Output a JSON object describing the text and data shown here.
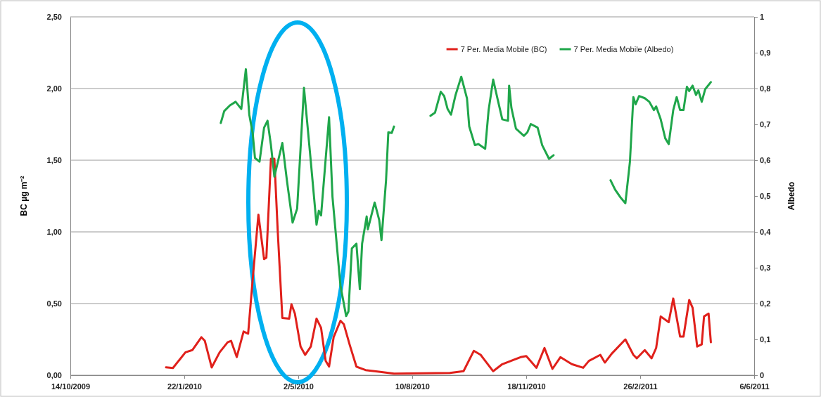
{
  "chart_data": {
    "type": "line",
    "ylabel": "BC µg m⁻²",
    "y2label": "Albedo",
    "xlim": [
      "2009-10-14",
      "2011-06-06"
    ],
    "xticks": [
      {
        "value": "2009-10-14",
        "label": "14/10/2009"
      },
      {
        "value": "2010-01-22",
        "label": "22/1/2010"
      },
      {
        "value": "2010-05-02",
        "label": "2/5/2010"
      },
      {
        "value": "2010-08-10",
        "label": "10/8/2010"
      },
      {
        "value": "2010-11-18",
        "label": "18/11/2010"
      },
      {
        "value": "2011-02-26",
        "label": "26/2/2011"
      },
      {
        "value": "2011-06-06",
        "label": "6/6/2011"
      }
    ],
    "ylim": [
      0,
      2.5
    ],
    "yticks": [
      {
        "value": 0,
        "label": "0,00"
      },
      {
        "value": 0.5,
        "label": "0,50"
      },
      {
        "value": 1,
        "label": "1,00"
      },
      {
        "value": 1.5,
        "label": "1,50"
      },
      {
        "value": 2,
        "label": "2,00"
      },
      {
        "value": 2.5,
        "label": "2,50"
      }
    ],
    "y2lim": [
      0,
      1
    ],
    "y2ticks": [
      0,
      {
        "value": 0.1,
        "label": "0,1"
      },
      {
        "value": 0.2,
        "label": "0,2"
      },
      {
        "value": 0.3,
        "label": "0,3"
      },
      {
        "value": 0.4,
        "label": "0,4"
      },
      {
        "value": 0.5,
        "label": "0,5"
      },
      {
        "value": 0.6,
        "label": "0,6"
      },
      {
        "value": 0.7,
        "label": "0,7"
      },
      {
        "value": 0.8,
        "label": "0,8"
      },
      {
        "value": 0.9,
        "label": "0,9"
      },
      1
    ],
    "grid": "y",
    "legend": "top",
    "series": [
      {
        "name": "7 Per. Media Mobile (BC)",
        "color": "#e0201b",
        "x": [
          "2010-01-06",
          "2010-01-12",
          "2010-01-23",
          "2010-01-29",
          "2010-02-06",
          "2010-02-09",
          "2010-02-15",
          "2010-02-22",
          "2010-03-01",
          "2010-03-04",
          "2010-03-09",
          "2010-03-15",
          "2010-03-19",
          "2010-03-23",
          "2010-03-28",
          "2010-04-02",
          "2010-04-04",
          "2010-04-08",
          "2010-04-11",
          "2010-04-14",
          "2010-04-18",
          "2010-04-24",
          "2010-04-26",
          "2010-04-29",
          "2010-05-04",
          "2010-05-08",
          "2010-05-13",
          "2010-05-18",
          "2010-05-22",
          "2010-05-26",
          "2010-05-29",
          "2010-06-02",
          "2010-06-08",
          "2010-06-11",
          "2010-06-16",
          "2010-06-22",
          "2010-06-30",
          "2010-07-13",
          "2010-07-25",
          "2010-09-12",
          "2010-09-24",
          "2010-10-03",
          "2010-10-09",
          "2010-10-20",
          "2010-10-28",
          "2010-11-13",
          "2010-11-18",
          "2010-11-27",
          "2010-12-04",
          "2010-12-11",
          "2010-12-18",
          "2010-12-28",
          "2011-01-07",
          "2011-01-12",
          "2011-01-22",
          "2011-01-26",
          "2011-02-01",
          "2011-02-13",
          "2011-02-20",
          "2011-02-23",
          "2011-03-02",
          "2011-03-08",
          "2011-03-12",
          "2011-03-16",
          "2011-03-23",
          "2011-03-27",
          "2011-04-02",
          "2011-04-05",
          "2011-04-10",
          "2011-04-13",
          "2011-04-17",
          "2011-04-21",
          "2011-04-23",
          "2011-04-27",
          "2011-04-29"
        ],
        "values": [
          0.055,
          0.05,
          0.16,
          0.175,
          0.265,
          0.24,
          0.054,
          0.16,
          0.23,
          0.24,
          0.127,
          0.305,
          0.29,
          0.67,
          1.12,
          0.81,
          0.82,
          1.51,
          1.51,
          1.0,
          0.4,
          0.395,
          0.495,
          0.43,
          0.2,
          0.142,
          0.2,
          0.395,
          0.33,
          0.1,
          0.06,
          0.265,
          0.38,
          0.355,
          0.215,
          0.06,
          0.036,
          0.023,
          0.011,
          0.016,
          0.028,
          0.17,
          0.142,
          0.028,
          0.077,
          0.126,
          0.134,
          0.052,
          0.19,
          0.044,
          0.126,
          0.077,
          0.052,
          0.1,
          0.142,
          0.088,
          0.15,
          0.25,
          0.142,
          0.118,
          0.175,
          0.118,
          0.19,
          0.41,
          0.37,
          0.535,
          0.27,
          0.27,
          0.525,
          0.47,
          0.2,
          0.215,
          0.41,
          0.43,
          0.23
        ]
      },
      {
        "name": "7 Per. Media Mobile (Albedo)",
        "color": "#1fa64a",
        "axis": "y2",
        "x": [
          "2010-02-23",
          "2010-02-26",
          "2010-03-03",
          "2010-03-08",
          "2010-03-13",
          "2010-03-17",
          "2010-03-20",
          "2010-03-23",
          "2010-03-25",
          "2010-03-29",
          "2010-04-02",
          "2010-04-05",
          "2010-04-08",
          "2010-04-11",
          "2010-04-18",
          "2010-04-22",
          "2010-04-27",
          "2010-05-01",
          "2010-05-07",
          "2010-05-13",
          "2010-05-18",
          "2010-05-20",
          "2010-05-22",
          "2010-05-29",
          "2010-06-01",
          "2010-06-08",
          "2010-06-13",
          "2010-06-15",
          "2010-06-18",
          "2010-06-22",
          "2010-06-25",
          "2010-06-27",
          "2010-07-01",
          "2010-07-02",
          "2010-07-08",
          "2010-07-12",
          "2010-07-14",
          "2010-07-18",
          "2010-07-20",
          "2010-07-23",
          "2010-07-25",
          "2010-08-10",
          "2010-08-26",
          "2010-08-30",
          "2010-09-04",
          "2010-09-07",
          "2010-09-10",
          "2010-09-13",
          "2010-09-17",
          "2010-09-22",
          "2010-09-27",
          "2010-09-29",
          "2010-10-04",
          "2010-10-07",
          "2010-10-13",
          "2010-10-16",
          "2010-10-20",
          "2010-10-24",
          "2010-10-28",
          "2010-11-02",
          "2010-11-03",
          "2010-11-05",
          "2010-11-09",
          "2010-11-16",
          "2010-11-19",
          "2010-11-22",
          "2010-11-28",
          "2010-12-02",
          "2010-12-08",
          "2010-12-12",
          "2011-01-07",
          "2011-01-31",
          "2011-02-04",
          "2011-02-09",
          "2011-02-13",
          "2011-02-17",
          "2011-02-20",
          "2011-02-22",
          "2011-02-25",
          "2011-03-02",
          "2011-03-06",
          "2011-03-10",
          "2011-03-12",
          "2011-03-16",
          "2011-03-20",
          "2011-03-23",
          "2011-03-27",
          "2011-03-30",
          "2011-04-02",
          "2011-04-05",
          "2011-04-08",
          "2011-04-10",
          "2011-04-13",
          "2011-04-16",
          "2011-04-18",
          "2011-04-21",
          "2011-04-24",
          "2011-04-29"
        ],
        "values": [
          0.704,
          0.737,
          0.753,
          0.763,
          0.743,
          0.854,
          0.727,
          0.675,
          0.606,
          0.596,
          0.691,
          0.71,
          0.642,
          0.554,
          0.648,
          0.544,
          0.426,
          0.465,
          0.802,
          0.596,
          0.42,
          0.459,
          0.446,
          0.72,
          0.498,
          0.25,
          0.165,
          0.178,
          0.354,
          0.367,
          0.24,
          0.367,
          0.443,
          0.407,
          0.482,
          0.433,
          0.377,
          0.544,
          0.678,
          0.676,
          0.694,
          null,
          0.724,
          0.733,
          0.791,
          0.779,
          0.743,
          0.727,
          0.782,
          0.833,
          0.773,
          0.694,
          0.642,
          0.645,
          0.632,
          0.74,
          0.825,
          0.769,
          0.714,
          0.71,
          0.808,
          0.746,
          0.688,
          0.668,
          0.678,
          0.701,
          0.691,
          0.642,
          0.604,
          0.614,
          null,
          0.544,
          0.518,
          0.495,
          0.48,
          0.596,
          0.776,
          0.756,
          0.779,
          0.773,
          0.763,
          0.74,
          0.75,
          0.714,
          0.661,
          0.645,
          0.74,
          0.776,
          0.74,
          0.74,
          0.805,
          0.793,
          0.808,
          0.782,
          0.795,
          0.763,
          0.798,
          0.818
        ]
      }
    ]
  }
}
